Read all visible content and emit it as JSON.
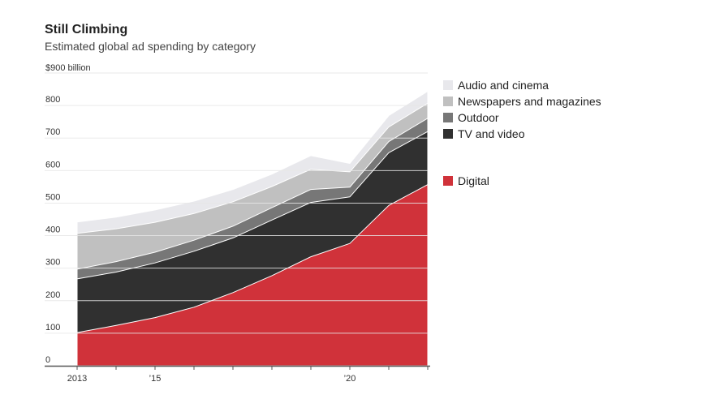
{
  "title": "Still Climbing",
  "subtitle": "Estimated global ad spending by category",
  "colors": {
    "digital": "#d0323a",
    "tv": "#303030",
    "outdoor": "#777777",
    "newspapers": "#c0c0c0",
    "audio": "#e8e8ec"
  },
  "chart_data": {
    "type": "area",
    "stacked": true,
    "title": "Still Climbing",
    "subtitle": "Estimated global ad spending by category",
    "ylabel_top": "$900 billion",
    "x": [
      2013,
      2014,
      2015,
      2016,
      2017,
      2018,
      2019,
      2020,
      2021,
      2022
    ],
    "x_tick_labels": [
      {
        "x": 2013,
        "label": "2013"
      },
      {
        "x": 2015,
        "label": "'15"
      },
      {
        "x": 2020,
        "label": "'20"
      }
    ],
    "y_tick_labels": [
      {
        "y": 0,
        "label": "0"
      },
      {
        "y": 100,
        "label": "100"
      },
      {
        "y": 200,
        "label": "200"
      },
      {
        "y": 300,
        "label": "300"
      },
      {
        "y": 400,
        "label": "400"
      },
      {
        "y": 500,
        "label": "500"
      },
      {
        "y": 600,
        "label": "600"
      },
      {
        "y": 700,
        "label": "700"
      },
      {
        "y": 800,
        "label": "800"
      },
      {
        "y": 900,
        "label": "$900 billion"
      }
    ],
    "xlim": [
      2013,
      2022
    ],
    "ylim": [
      0,
      900
    ],
    "grid": true,
    "legend": "right",
    "series": [
      {
        "name": "Digital",
        "key": "digital",
        "values": [
          102,
          124,
          148,
          180,
          225,
          277,
          335,
          376,
          493,
          557
        ]
      },
      {
        "name": "TV and video",
        "key": "tv",
        "values": [
          165,
          164,
          168,
          172,
          168,
          171,
          167,
          143,
          162,
          163
        ]
      },
      {
        "name": "Outdoor",
        "key": "outdoor",
        "values": [
          30,
          32,
          33,
          34,
          36,
          38,
          40,
          30,
          34,
          41
        ]
      },
      {
        "name": "Newspapers and magazines",
        "key": "newspapers",
        "values": [
          110,
          101,
          92,
          82,
          75,
          65,
          62,
          47,
          45,
          46
        ]
      },
      {
        "name": "Audio and cinema",
        "key": "audio",
        "values": [
          35,
          36,
          38,
          38,
          38,
          38,
          42,
          26,
          35,
          37
        ]
      }
    ]
  }
}
